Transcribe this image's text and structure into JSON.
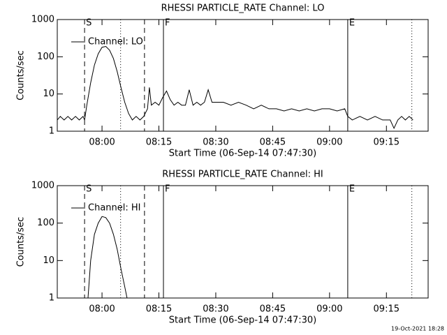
{
  "chart_data": [
    {
      "type": "line",
      "title": "RHESSI PARTICLE_RATE Channel: LO",
      "xlabel": "Start Time (06-Sep-14 07:47:30)",
      "ylabel": "Counts/sec",
      "log_y": true,
      "legend": "upper left",
      "xlim": [
        468.2,
        566
      ],
      "ylim": [
        1,
        1000
      ],
      "xticks": [
        {
          "value": 480,
          "label": "08:00"
        },
        {
          "value": 495,
          "label": "08:15"
        },
        {
          "value": 510,
          "label": "08:30"
        },
        {
          "value": 525,
          "label": "08:45"
        },
        {
          "value": 540,
          "label": "09:00"
        },
        {
          "value": 555,
          "label": "09:15"
        }
      ],
      "yticks": [
        1,
        10,
        100,
        1000
      ],
      "markers": [
        {
          "x": 475.4,
          "style": "dashed",
          "label": "S"
        },
        {
          "x": 484.9,
          "style": "dotted"
        },
        {
          "x": 491.2,
          "style": "dashed"
        },
        {
          "x": 496.2,
          "style": "solid",
          "label": "F"
        },
        {
          "x": 544.8,
          "style": "solid",
          "label": "E"
        },
        {
          "x": 561.7,
          "style": "dotted"
        }
      ],
      "series": [
        {
          "name": "Channel: LO",
          "color": "#000000",
          "x": [
            468.2,
            469,
            470,
            471,
            472,
            473,
            474,
            475,
            475.4,
            476,
            477,
            478,
            479,
            480,
            481,
            482,
            483,
            484,
            485,
            486,
            487,
            488,
            489,
            490,
            491,
            492,
            492.5,
            493,
            494,
            495,
            496,
            497,
            498,
            499,
            500,
            501,
            502,
            503,
            504,
            505,
            506,
            507,
            508,
            509,
            510,
            512,
            514,
            516,
            518,
            520,
            522,
            524,
            526,
            528,
            530,
            532,
            534,
            536,
            538,
            540,
            542,
            544,
            544.8,
            546,
            548,
            550,
            552,
            554,
            556,
            557,
            558,
            559,
            560,
            561,
            562
          ],
          "values": [
            2,
            2.5,
            2,
            2.5,
            2,
            2.5,
            2,
            2.5,
            2,
            5,
            20,
            60,
            120,
            180,
            190,
            150,
            90,
            40,
            15,
            6,
            3,
            2,
            2.5,
            2,
            2.5,
            4,
            15,
            5,
            6,
            5,
            8,
            12,
            7,
            5,
            6,
            5,
            5,
            13,
            5,
            6,
            5,
            6,
            13,
            6,
            6,
            6,
            5,
            6,
            5,
            4,
            5,
            4,
            4,
            3.5,
            4,
            3.5,
            4,
            3.5,
            4,
            4,
            3.5,
            4,
            2.5,
            2,
            2.5,
            2,
            2.5,
            2,
            2,
            1.2,
            2,
            2.5,
            2,
            2.5,
            2
          ]
        }
      ]
    },
    {
      "type": "line",
      "title": "RHESSI PARTICLE_RATE Channel: HI",
      "xlabel": "Start Time (06-Sep-14 07:47:30)",
      "ylabel": "Counts/sec",
      "log_y": true,
      "legend": "upper left",
      "xlim": [
        468.2,
        566
      ],
      "ylim": [
        1,
        1000
      ],
      "xticks": [
        {
          "value": 480,
          "label": "08:00"
        },
        {
          "value": 495,
          "label": "08:15"
        },
        {
          "value": 510,
          "label": "08:30"
        },
        {
          "value": 525,
          "label": "08:45"
        },
        {
          "value": 540,
          "label": "09:00"
        },
        {
          "value": 555,
          "label": "09:15"
        }
      ],
      "yticks": [
        1,
        10,
        100,
        1000
      ],
      "markers": [
        {
          "x": 475.4,
          "style": "dashed",
          "label": "S"
        },
        {
          "x": 484.9,
          "style": "dotted"
        },
        {
          "x": 491.2,
          "style": "dashed"
        },
        {
          "x": 496.2,
          "style": "solid",
          "label": "F"
        },
        {
          "x": 544.8,
          "style": "solid",
          "label": "E"
        },
        {
          "x": 561.7,
          "style": "dotted"
        }
      ],
      "series": [
        {
          "name": "Channel: HI",
          "color": "#000000",
          "x": [
            476.3,
            477,
            478,
            479,
            480,
            481,
            482,
            483,
            484,
            485,
            486,
            486.6
          ],
          "values": [
            1,
            10,
            50,
            100,
            150,
            140,
            100,
            50,
            20,
            6,
            2,
            1
          ]
        }
      ]
    }
  ],
  "footer": "19-Oct-2021 18:28"
}
